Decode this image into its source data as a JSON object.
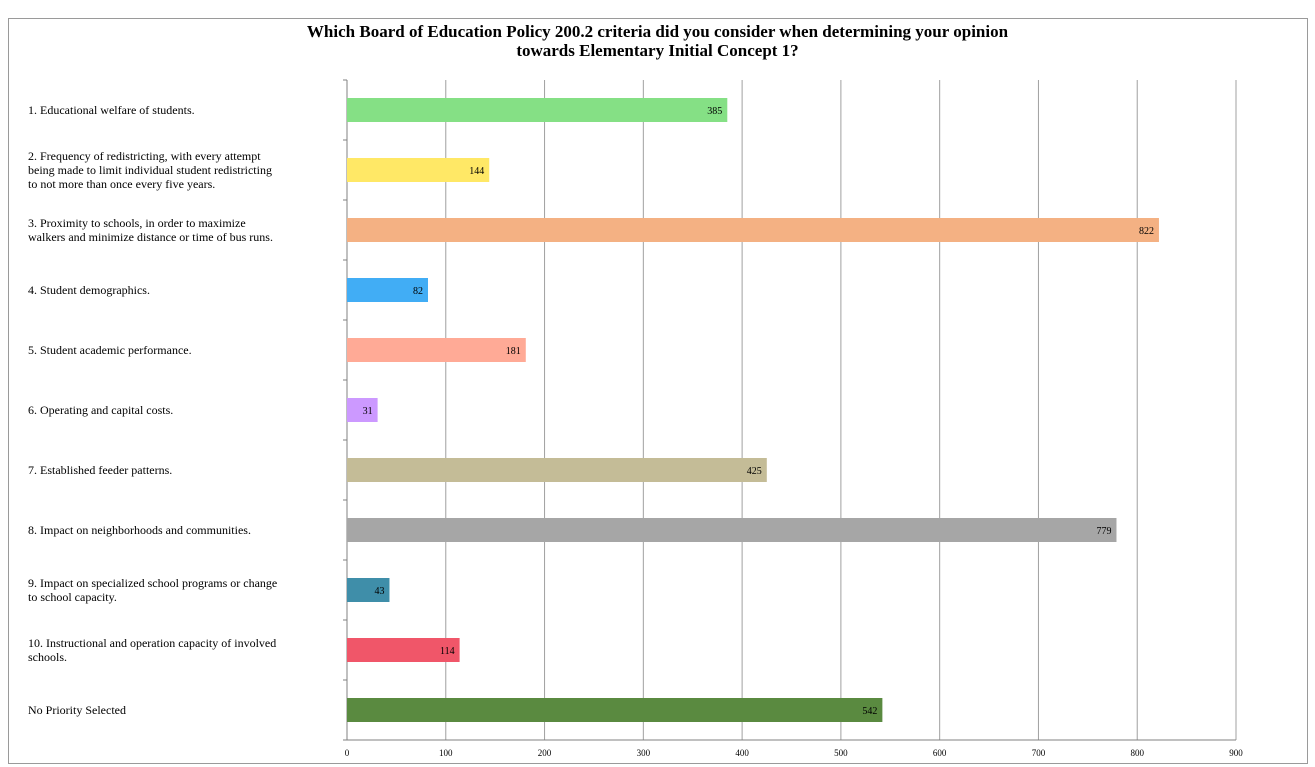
{
  "chart_data": {
    "type": "bar",
    "orientation": "horizontal",
    "title_lines": [
      "Which Board of Education Policy 200.2 criteria did you consider when determining your opinion",
      "towards Elementary Initial Concept 1?"
    ],
    "categories": [
      [
        "1. Educational welfare of students."
      ],
      [
        "2. Frequency of redistricting, with every attempt",
        "being made to limit individual student redistricting",
        "to not more than once every five years."
      ],
      [
        "3. Proximity to schools, in order to maximize",
        "walkers and minimize distance or time of bus runs."
      ],
      [
        "4. Student demographics."
      ],
      [
        "5. Student academic performance."
      ],
      [
        "6. Operating and capital costs."
      ],
      [
        "7. Established feeder patterns."
      ],
      [
        "8. Impact on neighborhoods and communities."
      ],
      [
        "9. Impact on specialized school programs or change",
        "to school capacity."
      ],
      [
        "10. Instructional and operation capacity of involved",
        "schools."
      ],
      [
        "No Priority Selected"
      ]
    ],
    "values": [
      385,
      144,
      822,
      82,
      181,
      31,
      425,
      779,
      43,
      114,
      542
    ],
    "colors": [
      "#85e085",
      "#ffe866",
      "#f4b183",
      "#41adf5",
      "#ffaa96",
      "#cc99ff",
      "#c4bc97",
      "#a6a6a6",
      "#3f8ea9",
      "#f05669",
      "#5a8a40"
    ],
    "xlim": [
      0,
      900
    ],
    "xticks": [
      0,
      100,
      200,
      300,
      400,
      500,
      600,
      700,
      800,
      900
    ],
    "grid": true,
    "legend": "none"
  }
}
